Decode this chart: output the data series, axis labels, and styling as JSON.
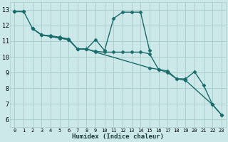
{
  "bg_color": "#cde8e8",
  "grid_color": "#aacfcf",
  "line_color": "#1a6b6b",
  "xlabel": "Humidex (Indice chaleur)",
  "xlim": [
    -0.5,
    23.5
  ],
  "ylim": [
    5.5,
    13.5
  ],
  "yticks": [
    6,
    7,
    8,
    9,
    10,
    11,
    12,
    13
  ],
  "xticks": [
    0,
    1,
    2,
    3,
    4,
    5,
    6,
    7,
    8,
    9,
    10,
    11,
    12,
    13,
    14,
    15,
    16,
    17,
    18,
    19,
    20,
    21,
    22,
    23
  ],
  "series": [
    {
      "x": [
        0,
        1
      ],
      "y": [
        12.9,
        12.9
      ]
    },
    {
      "x": [
        0,
        1,
        2,
        3,
        4,
        5,
        6,
        7,
        8,
        9,
        10,
        11,
        12,
        13,
        14,
        15,
        16,
        17,
        18,
        19,
        22,
        23
      ],
      "y": [
        12.9,
        12.9,
        11.8,
        11.4,
        11.3,
        11.2,
        11.1,
        10.5,
        10.5,
        10.35,
        10.3,
        10.3,
        10.3,
        10.3,
        10.3,
        10.2,
        9.2,
        9.0,
        8.6,
        8.5,
        6.95,
        6.3
      ]
    },
    {
      "x": [
        2,
        3,
        4,
        5,
        6,
        7,
        8,
        9,
        10,
        11,
        12,
        13,
        14,
        15
      ],
      "y": [
        11.8,
        11.4,
        11.35,
        11.25,
        11.15,
        10.5,
        10.5,
        11.1,
        10.4,
        12.45,
        12.85,
        12.85,
        12.85,
        10.4
      ]
    },
    {
      "x": [
        2,
        3,
        4,
        5,
        6,
        7,
        8,
        9,
        15,
        16,
        17,
        18,
        19,
        20,
        21,
        22,
        23
      ],
      "y": [
        11.8,
        11.4,
        11.3,
        11.2,
        11.1,
        10.5,
        10.5,
        10.3,
        9.3,
        9.2,
        9.1,
        8.6,
        8.6,
        9.05,
        8.2,
        6.95,
        6.3
      ]
    }
  ]
}
